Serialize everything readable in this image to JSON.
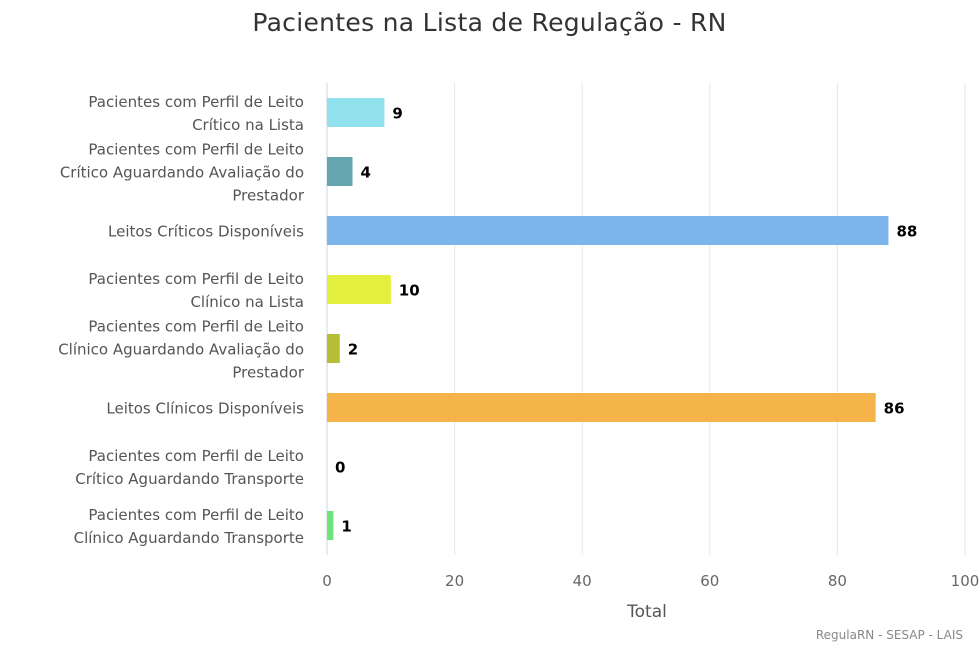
{
  "chart_data": {
    "type": "bar",
    "orientation": "horizontal",
    "title": "Pacientes na Lista de Regulação - RN",
    "xlabel": "Total",
    "xlim": [
      0,
      100
    ],
    "xticks": [
      0,
      20,
      40,
      60,
      80,
      100
    ],
    "grid": true,
    "categories": [
      [
        "Pacientes com Perfil de Leito",
        "Crítico na Lista"
      ],
      [
        "Pacientes com Perfil de Leito",
        "Crítico Aguardando Avaliação do",
        "Prestador"
      ],
      [
        "Leitos Críticos Disponíveis"
      ],
      [
        "Pacientes com Perfil de Leito",
        "Clínico na Lista"
      ],
      [
        "Pacientes com Perfil de Leito",
        "Clínico Aguardando Avaliação do",
        "Prestador"
      ],
      [
        "Leitos Clínicos Disponíveis"
      ],
      [
        "Pacientes com Perfil de Leito",
        "Crítico Aguardando Transporte"
      ],
      [
        "Pacientes com Perfil de Leito",
        "Clínico Aguardando Transporte"
      ]
    ],
    "values": [
      9,
      4,
      88,
      10,
      2,
      86,
      0,
      1
    ],
    "colors": [
      "#91E1EC",
      "#65A6AE",
      "#7CB5EC",
      "#E4EE3C",
      "#B5BE35",
      "#F5B44A",
      "#4BA3C3",
      "#6CE57A"
    ]
  },
  "credit": "RegulaRN - SESAP - LAIS"
}
